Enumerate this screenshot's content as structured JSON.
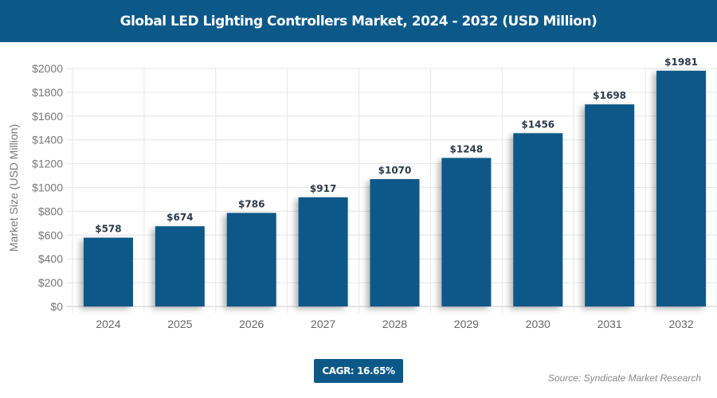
{
  "chart_data": {
    "type": "bar",
    "title": "Global LED Lighting Controllers Market, 2024 - 2032 (USD Million)",
    "ylabel": "Market Size (USD Million)",
    "xlabel": "",
    "categories": [
      "2024",
      "2025",
      "2026",
      "2027",
      "2028",
      "2029",
      "2030",
      "2031",
      "2032"
    ],
    "values": [
      578,
      674,
      786,
      917,
      1070,
      1248,
      1456,
      1698,
      1981
    ],
    "data_labels": [
      "$578",
      "$674",
      "$786",
      "$917",
      "$1070",
      "$1248",
      "$1456",
      "$1698",
      "$1981"
    ],
    "ylim": [
      0,
      2000
    ],
    "yticks": [
      0,
      200,
      400,
      600,
      800,
      1000,
      1200,
      1400,
      1600,
      1800,
      2000
    ],
    "ytick_labels": [
      "$0",
      "$200",
      "$400",
      "$600",
      "$800",
      "$1000",
      "$1200",
      "$1400",
      "$1600",
      "$1800",
      "$2000"
    ],
    "grid": true,
    "bar_color": "#0b5889"
  },
  "footer": {
    "cagr": "CAGR: 16.65%",
    "source": "Source: Syndicate Market Research"
  }
}
